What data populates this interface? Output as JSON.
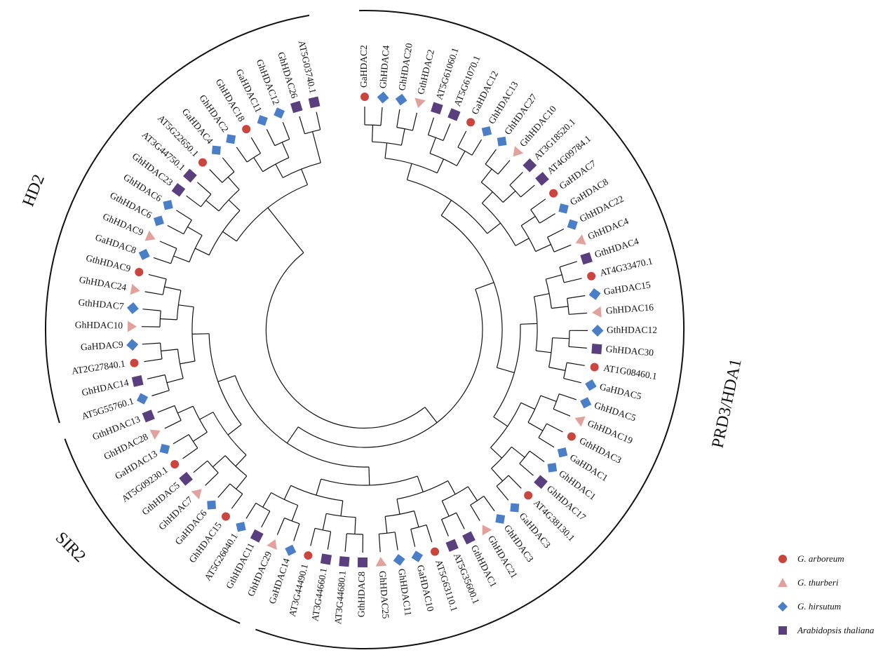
{
  "species": {
    "arboreum": {
      "label": "G. arboreum",
      "color": "#c9453d",
      "shape": "circle"
    },
    "thurberi": {
      "label": "G. thurberi",
      "color": "#e3a19b",
      "shape": "triangle"
    },
    "hirsutum": {
      "label": "G. hirsutum",
      "color": "#4a7ec7",
      "shape": "diamond"
    },
    "arabidopsis": {
      "label": "Arabidopsis thaliana",
      "color": "#5a3f7e",
      "shape": "square"
    }
  },
  "legend": [
    "arboreum",
    "thurberi",
    "hirsutum",
    "arabidopsis"
  ],
  "clades": [
    {
      "label": "PRD3/HDA1"
    },
    {
      "label": "SIR2"
    },
    {
      "label": "HD2"
    }
  ],
  "leaves": [
    {
      "name": "GaHDAC2",
      "sp": "arboreum"
    },
    {
      "name": "GhHDAC4",
      "sp": "hirsutum"
    },
    {
      "name": "GhHDAC20",
      "sp": "hirsutum"
    },
    {
      "name": "GthHDAC2",
      "sp": "thurberi"
    },
    {
      "name": "AT5G61060.1",
      "sp": "arabidopsis"
    },
    {
      "name": "AT5G61070.1",
      "sp": "arabidopsis"
    },
    {
      "name": "GaHDAC12",
      "sp": "arboreum"
    },
    {
      "name": "GhHDAC13",
      "sp": "hirsutum"
    },
    {
      "name": "GhHDAC27",
      "sp": "hirsutum"
    },
    {
      "name": "GthHDAC10",
      "sp": "thurberi"
    },
    {
      "name": "AT3G18520.1",
      "sp": "arabidopsis"
    },
    {
      "name": "AT4G09784.1",
      "sp": "arabidopsis"
    },
    {
      "name": "GaHDAC7",
      "sp": "arboreum"
    },
    {
      "name": "GaHDAC8",
      "sp": "hirsutum"
    },
    {
      "name": "GhHDAC22",
      "sp": "hirsutum"
    },
    {
      "name": "GhHDAC4",
      "sp": "thurberi"
    },
    {
      "name": "GthHDAC4",
      "sp": "arabidopsis"
    },
    {
      "name": "AT4G33470.1",
      "sp": "arboreum"
    },
    {
      "name": "GaHDAC15",
      "sp": "hirsutum"
    },
    {
      "name": "GhHDAC16",
      "sp": "thurberi"
    },
    {
      "name": "GthHDAC12",
      "sp": "hirsutum"
    },
    {
      "name": "GhHDAC30",
      "sp": "arabidopsis"
    },
    {
      "name": "AT1G08460.1",
      "sp": "arboreum"
    },
    {
      "name": "GaHDAC5",
      "sp": "hirsutum"
    },
    {
      "name": "GhHDAC5",
      "sp": "hirsutum"
    },
    {
      "name": "GhHDAC19",
      "sp": "thurberi"
    },
    {
      "name": "GthHDAC3",
      "sp": "arboreum"
    },
    {
      "name": "GaHDAC1",
      "sp": "hirsutum"
    },
    {
      "name": "GhHDAC1",
      "sp": "hirsutum"
    },
    {
      "name": "GhHDAC17",
      "sp": "arabidopsis"
    },
    {
      "name": "AT4G38130.1",
      "sp": "arboreum"
    },
    {
      "name": "GaHDAC3",
      "sp": "hirsutum"
    },
    {
      "name": "GhHDAC3",
      "sp": "hirsutum"
    },
    {
      "name": "GhHDAC21",
      "sp": "thurberi"
    },
    {
      "name": "GthHDAC1",
      "sp": "arabidopsis"
    },
    {
      "name": "AT5G35600.1",
      "sp": "arabidopsis"
    },
    {
      "name": "AT5G63110.1",
      "sp": "arboreum"
    },
    {
      "name": "GaHDAC10",
      "sp": "hirsutum"
    },
    {
      "name": "GhHDAC11",
      "sp": "hirsutum"
    },
    {
      "name": "GhHDAC25",
      "sp": "thurberi"
    },
    {
      "name": "GthHDAC8",
      "sp": "arabidopsis"
    },
    {
      "name": "AT3G44680.1",
      "sp": "arabidopsis"
    },
    {
      "name": "AT3G44660.1",
      "sp": "arabidopsis"
    },
    {
      "name": "AT3G44490.1",
      "sp": "arboreum"
    },
    {
      "name": "GaHDAC14",
      "sp": "hirsutum"
    },
    {
      "name": "GhHDAC29",
      "sp": "thurberi"
    },
    {
      "name": "GthHDAC11",
      "sp": "arabidopsis"
    },
    {
      "name": "AT5G26040.1",
      "sp": "hirsutum"
    },
    {
      "name": "GhHDAC15",
      "sp": "arboreum"
    },
    {
      "name": "GaHDAC6",
      "sp": "hirsutum"
    },
    {
      "name": "GhHDAC7",
      "sp": "thurberi"
    },
    {
      "name": "GthHDAC5",
      "sp": "arabidopsis"
    },
    {
      "name": "AT5G09230.1",
      "sp": "arboreum"
    },
    {
      "name": "GaHDAC13",
      "sp": "hirsutum"
    },
    {
      "name": "GhHDAC28",
      "sp": "thurberi"
    },
    {
      "name": "GthHDAC13",
      "sp": "arabidopsis"
    },
    {
      "name": "AT5G55760.1",
      "sp": "hirsutum"
    },
    {
      "name": "GhHDAC14",
      "sp": "arabidopsis"
    },
    {
      "name": "AT2G27840.1",
      "sp": "arboreum"
    },
    {
      "name": "GaHDAC9",
      "sp": "hirsutum"
    },
    {
      "name": "GhHDAC10",
      "sp": "thurberi"
    },
    {
      "name": "GthHDAC7",
      "sp": "hirsutum"
    },
    {
      "name": "GhHDAC24",
      "sp": "thurberi"
    },
    {
      "name": "GthHDAC9",
      "sp": "arboreum"
    },
    {
      "name": "GaHDAC8",
      "sp": "hirsutum"
    },
    {
      "name": "GhHDAC9",
      "sp": "thurberi"
    },
    {
      "name": "GthHDAC6",
      "sp": "hirsutum"
    },
    {
      "name": "GhHDAC6",
      "sp": "hirsutum"
    },
    {
      "name": "GhHDAC23",
      "sp": "arabidopsis"
    },
    {
      "name": "AT3G44750.1",
      "sp": "arabidopsis"
    },
    {
      "name": "AT5G22650.1",
      "sp": "arboreum"
    },
    {
      "name": "GaHDAC4",
      "sp": "hirsutum"
    },
    {
      "name": "GhHDAC2",
      "sp": "hirsutum"
    },
    {
      "name": "GhHDAC18",
      "sp": "arboreum"
    },
    {
      "name": "GaHDAC11",
      "sp": "hirsutum"
    },
    {
      "name": "GhHDAC12",
      "sp": "hirsutum"
    },
    {
      "name": "GhHDAC26",
      "sp": "arabidopsis"
    },
    {
      "name": "AT5G03740.1",
      "sp": "arabidopsis"
    }
  ]
}
